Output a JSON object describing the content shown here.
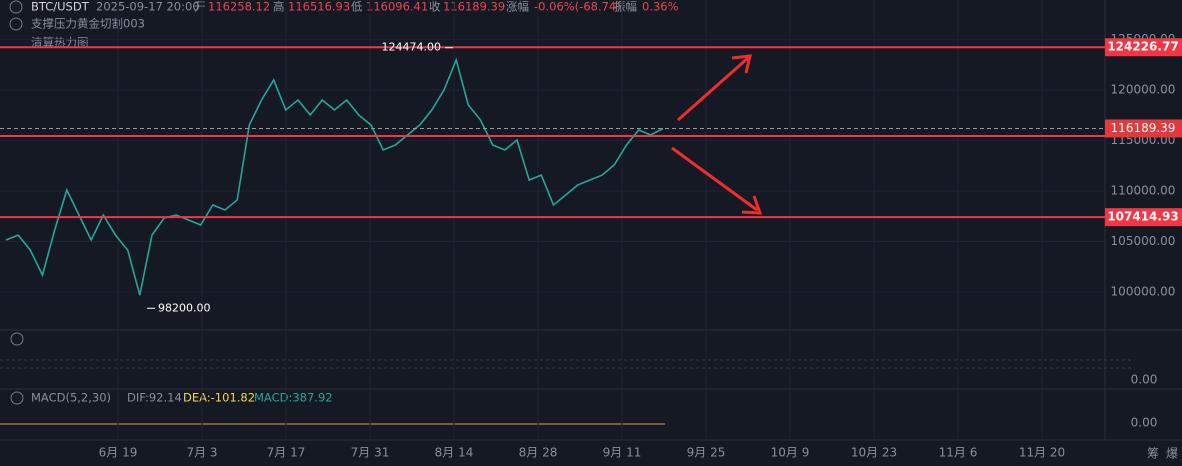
{
  "header": {
    "symbol": "BTC/USDT",
    "datetime": "2025-09-17 20:00",
    "open_label": "开",
    "open": "116258.12",
    "high_label": "高",
    "high": "116516.93",
    "low_label": "低",
    "low": "116096.41",
    "close_label": "收",
    "close": "116189.39",
    "change_label": "涨幅",
    "change": "-0.06%(-68.74)",
    "amplitude_label": "振幅",
    "amplitude": "0.36%",
    "indicator1": "支撑压力黄金切割003",
    "indicator2": "清算热力图"
  },
  "chart_data": {
    "type": "line",
    "color": "#26a69a",
    "values": [
      105150,
      105640,
      104160,
      101680,
      106140,
      110100,
      107620,
      105150,
      107620,
      105640,
      104160,
      99700,
      105640,
      107330,
      107620,
      107130,
      106640,
      108620,
      108120,
      109110,
      116530,
      119010,
      120990,
      118020,
      119010,
      117520,
      119010,
      118020,
      119010,
      117520,
      116530,
      114060,
      114550,
      115540,
      116530,
      118020,
      120000,
      122970,
      118510,
      117030,
      114550,
      114060,
      115050,
      111090,
      111580,
      108620,
      109610,
      110600,
      111090,
      111580,
      112580,
      114550,
      116040,
      115540,
      116189.39
    ],
    "x_labels": [
      "6月 19",
      "7月 3",
      "7月 17",
      "7月 31",
      "8月 14",
      "8月 28",
      "9月 11",
      "9月 25",
      "10月 9",
      "10月 23",
      "11月 6",
      "11月 20"
    ],
    "ylim": [
      96250,
      128900
    ],
    "yticks": [
      {
        "value": 100000,
        "label": "100000.00"
      },
      {
        "value": 105000,
        "label": "105000.00"
      },
      {
        "value": 110000,
        "label": "110000.00"
      },
      {
        "value": 115000,
        "label": "115000.00"
      },
      {
        "value": 120000,
        "label": "120000.00"
      },
      {
        "value": 125000,
        "label": "125000.00"
      }
    ],
    "levels": [
      {
        "value": 124226.77,
        "color": "#f23645"
      },
      {
        "value": 107414.93,
        "color": "#f23645"
      }
    ],
    "support_line": 115450,
    "current_price": 116189.39,
    "annotations": [
      {
        "value": 124474,
        "label": "124474.00"
      },
      {
        "value": 98200,
        "label": "98200.00"
      }
    ],
    "osc_axis_label": "0.00",
    "macd": {
      "name": "MACD(5,2,30)",
      "dif": "DIF:92.14",
      "dea": "DEA:-101.82",
      "macd": "MACD:387.92",
      "axis_label": "0.00"
    },
    "side_buttons": [
      "筹",
      "爆"
    ]
  }
}
